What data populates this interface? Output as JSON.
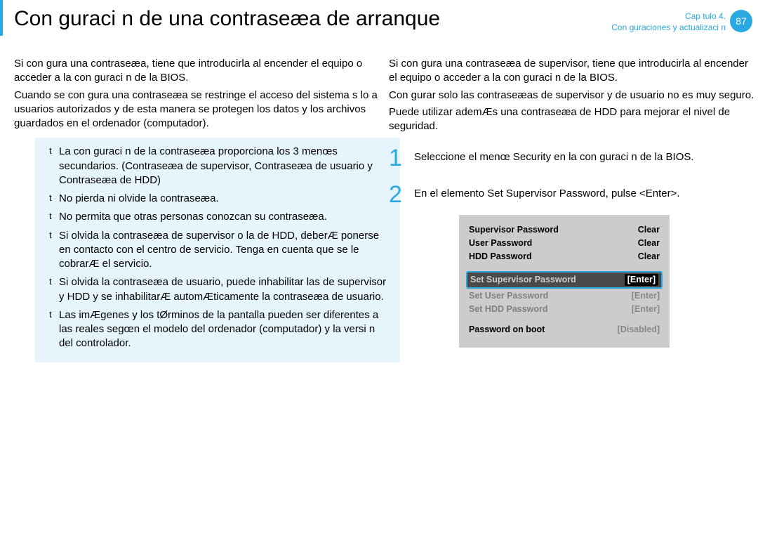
{
  "header": {
    "title": "Con guraci n de una contraseæa de arranque",
    "chapter_line1": "Cap tulo 4.",
    "chapter_line2": "Con guraciones y actualizaci n",
    "page_number": "87"
  },
  "left": {
    "p1": "Si con gura una contraseæa, tiene que introducirla al encender el equipo o acceder a la con guraci n de la BIOS.",
    "p2": "Cuando se con gura una contraseæa se restringe el acceso del sistema s lo a usuarios autorizados y de esta manera se protegen los datos y los archivos guardados en el ordenador (computador).",
    "notes": [
      "La con guraci n de la contraseæa proporciona los 3 menœs secundarios. (Contraseæa de supervisor, Contraseæa de usuario y Contraseæa de HDD)",
      "No pierda ni olvide la contraseæa.",
      "No permita que otras personas conozcan su contraseæa.",
      "Si olvida la contraseæa de supervisor o la de HDD, deberÆ ponerse en contacto con el centro de servicio. Tenga en cuenta que se le cobrarÆ el servicio.",
      "Si olvida la contraseæa de usuario, puede inhabilitar las de supervisor y HDD y se inhabilitarÆ automÆticamente la contraseæa de usuario.",
      "Las imÆgenes y los tØrminos de la pantalla pueden ser diferentes a las reales segœn el modelo del ordenador (computador) y la versi n del controlador."
    ]
  },
  "right": {
    "p1": "Si con gura una contraseæa de supervisor, tiene que introducirla al encender el equipo o acceder a la con guraci n de la BIOS.",
    "p2": "Con gurar solo las contraseæas de supervisor y de usuario no es muy seguro.",
    "p3": "Puede utilizar ademÆs una contraseæa de HDD para mejorar el nivel de seguridad.",
    "step1_num": "1",
    "step1_text": "Seleccione el menœ Security en la con guraci n de la BIOS.",
    "step2_num": "2",
    "step2_text": "En el elemento Set Supervisor Password, pulse <Enter>.",
    "bios": {
      "rows_top": [
        {
          "l": "Supervisor Password",
          "r": "Clear"
        },
        {
          "l": "User Password",
          "r": "Clear"
        },
        {
          "l": "HDD Password",
          "r": "Clear"
        }
      ],
      "highlight": {
        "l": "Set Supervisor Password",
        "r": "[Enter]"
      },
      "rows_mid": [
        {
          "l": "Set User Password",
          "r": "[Enter]"
        },
        {
          "l": "Set HDD Password",
          "r": "[Enter]"
        }
      ],
      "rows_bot": [
        {
          "l": "Password on boot",
          "r": "[Disabled]"
        }
      ]
    }
  },
  "colors": {
    "accent": "#2aa9e0",
    "note_bg": "#e6f4fb",
    "bios_bg": "#cccccc",
    "bios_hl_bg": "#4a4a4a"
  }
}
